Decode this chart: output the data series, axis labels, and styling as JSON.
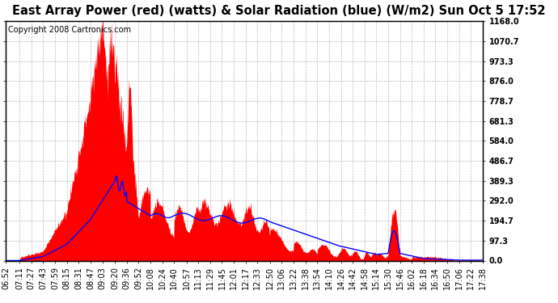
{
  "title": "East Array Power (red) (watts) & Solar Radiation (blue) (W/m2) Sun Oct 5 17:52",
  "copyright": "Copyright 2008 Cartronics.com",
  "y_ticks": [
    0.0,
    97.3,
    194.7,
    292.0,
    389.3,
    486.7,
    584.0,
    681.3,
    778.7,
    876.0,
    973.3,
    1070.7,
    1168.0
  ],
  "y_max": 1168.0,
  "y_min": 0.0,
  "x_labels": [
    "06:52",
    "07:11",
    "07:27",
    "07:43",
    "07:59",
    "08:15",
    "08:31",
    "08:47",
    "09:03",
    "09:20",
    "09:36",
    "09:52",
    "10:08",
    "10:24",
    "10:40",
    "10:57",
    "11:13",
    "11:29",
    "11:45",
    "12:01",
    "12:17",
    "12:33",
    "12:50",
    "13:06",
    "13:22",
    "13:38",
    "13:54",
    "14:10",
    "14:26",
    "14:42",
    "14:58",
    "15:14",
    "15:30",
    "15:46",
    "16:02",
    "16:18",
    "16:34",
    "16:50",
    "17:06",
    "17:22",
    "17:38"
  ],
  "fill_color": "#FF0000",
  "line_color": "#0000FF",
  "bg_color": "#FFFFFF",
  "plot_bg_color": "#FFFFFF",
  "grid_color": "#AAAAAA",
  "title_fontsize": 10.5,
  "copyright_fontsize": 7,
  "tick_fontsize": 7
}
